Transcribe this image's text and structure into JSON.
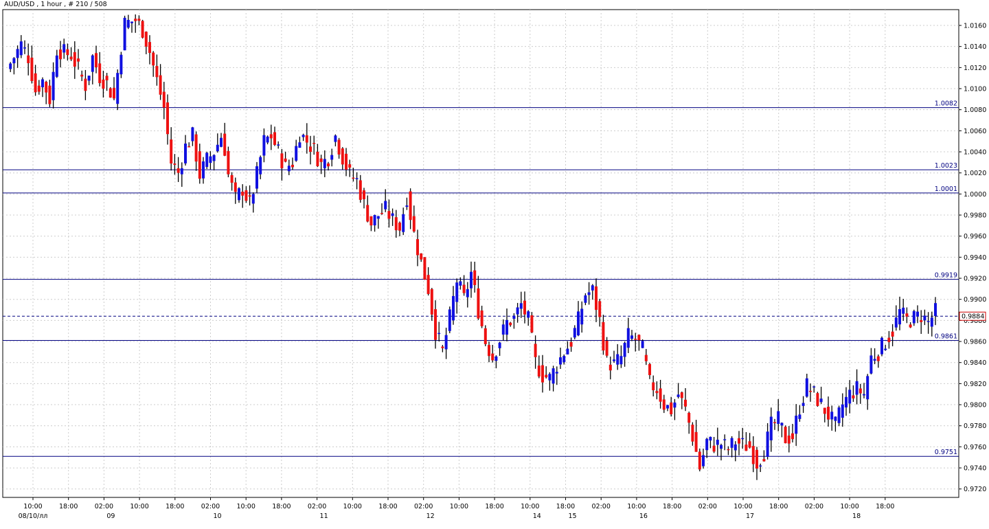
{
  "chart_data": {
    "type": "candlestick",
    "header": "AUD/USD , 1 hour , # 210 / 508",
    "ylim": [
      0.9712,
      1.0175
    ],
    "y_ticks": [
      "1.0160",
      "1.0140",
      "1.0120",
      "1.0100",
      "1.0080",
      "1.0060",
      "1.0040",
      "1.0020",
      "1.0000",
      "0.9980",
      "0.9960",
      "0.9940",
      "0.9920",
      "0.9900",
      "0.9880",
      "0.9860",
      "0.9840",
      "0.9820",
      "0.9800",
      "0.9780",
      "0.9760",
      "0.9740",
      "0.9720"
    ],
    "x_time_labels": [
      "10:00",
      "18:00",
      "02:00",
      "10:00",
      "18:00",
      "02:00",
      "10:00",
      "18:00",
      "02:00",
      "10:00",
      "18:00",
      "02:00",
      "10:00",
      "18:00",
      "10:00",
      "18:00",
      "02:00",
      "10:00",
      "18:00",
      "02:00",
      "10:00",
      "18:00",
      "02:00",
      "10:00",
      "18:00"
    ],
    "x_date_labels": [
      "08/10/лл",
      "09",
      "10",
      "11",
      "12",
      "14",
      "15",
      "16",
      "17",
      "18"
    ],
    "levels": [
      {
        "value": 1.0082,
        "label": "1.0082"
      },
      {
        "value": 1.0023,
        "label": "1.0023"
      },
      {
        "value": 1.0001,
        "label": "1.0001"
      },
      {
        "value": 0.9919,
        "label": "0.9919"
      },
      {
        "value": 0.9861,
        "label": "0.9861"
      },
      {
        "value": 0.9751,
        "label": "0.9751"
      }
    ],
    "current_price": {
      "value": 0.9884,
      "label": "0.9884"
    },
    "colors": {
      "up": "#1010e0",
      "down": "#ee1111",
      "wick": "#000000",
      "level": "#000080",
      "grid": "#cccccc",
      "current": "#cc0000"
    },
    "anchors": [
      [
        0,
        1.0118
      ],
      [
        4,
        1.0142
      ],
      [
        6,
        1.013
      ],
      [
        8,
        1.0098
      ],
      [
        10,
        1.0108
      ],
      [
        12,
        1.009
      ],
      [
        14,
        1.0138
      ],
      [
        16,
        1.0134
      ],
      [
        18,
        1.0132
      ],
      [
        20,
        1.0118
      ],
      [
        22,
        1.0103
      ],
      [
        24,
        1.013
      ],
      [
        26,
        1.0112
      ],
      [
        28,
        1.0105
      ],
      [
        30,
        1.009
      ],
      [
        32,
        1.014
      ],
      [
        33,
        1.0162
      ],
      [
        36,
        1.0165
      ],
      [
        38,
        1.0156
      ],
      [
        40,
        1.0135
      ],
      [
        42,
        1.0108
      ],
      [
        44,
        1.0082
      ],
      [
        46,
        1.003
      ],
      [
        48,
        1.002
      ],
      [
        50,
        1.0045
      ],
      [
        52,
        1.0055
      ],
      [
        54,
        1.0018
      ],
      [
        56,
        1.0032
      ],
      [
        58,
        1.004
      ],
      [
        60,
        1.0055
      ],
      [
        61,
        1.0043
      ],
      [
        62,
        1.0018
      ],
      [
        64,
        0.9995
      ],
      [
        66,
        1.0005
      ],
      [
        68,
        0.999
      ],
      [
        70,
        1.0018
      ],
      [
        72,
        1.005
      ],
      [
        74,
        1.0055
      ],
      [
        76,
        1.004
      ],
      [
        78,
        1.0025
      ],
      [
        80,
        1.003
      ],
      [
        82,
        1.0058
      ],
      [
        84,
        1.005
      ],
      [
        86,
        1.0042
      ],
      [
        88,
        1.0028
      ],
      [
        90,
        1.0035
      ],
      [
        92,
        1.0055
      ],
      [
        94,
        1.0035
      ],
      [
        96,
        1.0018
      ],
      [
        98,
        1.0013
      ],
      [
        100,
        0.999
      ],
      [
        102,
        0.9972
      ],
      [
        104,
        0.998
      ],
      [
        106,
        0.9985
      ],
      [
        108,
        0.9975
      ],
      [
        110,
        0.9968
      ],
      [
        112,
        0.9998
      ],
      [
        114,
        0.9962
      ],
      [
        116,
        0.9935
      ],
      [
        118,
        0.991
      ],
      [
        120,
        0.987
      ],
      [
        122,
        0.985
      ],
      [
        124,
        0.9882
      ],
      [
        126,
        0.9918
      ],
      [
        128,
        0.99
      ],
      [
        130,
        0.9925
      ],
      [
        132,
        0.989
      ],
      [
        134,
        0.986
      ],
      [
        136,
        0.9845
      ],
      [
        138,
        0.9862
      ],
      [
        140,
        0.9878
      ],
      [
        142,
        0.9882
      ],
      [
        144,
        0.9895
      ],
      [
        146,
        0.988
      ],
      [
        148,
        0.984
      ],
      [
        150,
        0.9828
      ],
      [
        152,
        0.9825
      ],
      [
        154,
        0.9838
      ],
      [
        156,
        0.985
      ],
      [
        158,
        0.986
      ],
      [
        160,
        0.988
      ],
      [
        162,
        0.9905
      ],
      [
        164,
        0.9908
      ],
      [
        166,
        0.988
      ],
      [
        168,
        0.984
      ],
      [
        170,
        0.9838
      ],
      [
        172,
        0.9845
      ],
      [
        174,
        0.9865
      ],
      [
        176,
        0.9862
      ],
      [
        178,
        0.9852
      ],
      [
        180,
        0.982
      ],
      [
        182,
        0.9815
      ],
      [
        184,
        0.98
      ],
      [
        186,
        0.9795
      ],
      [
        188,
        0.981
      ],
      [
        190,
        0.9795
      ],
      [
        192,
        0.977
      ],
      [
        194,
        0.974
      ],
      [
        196,
        0.9765
      ],
      [
        198,
        0.9762
      ],
      [
        200,
        0.9763
      ],
      [
        202,
        0.9758
      ],
      [
        204,
        0.9765
      ],
      [
        206,
        0.9762
      ],
      [
        208,
        0.976
      ],
      [
        210,
        0.9745
      ],
      [
        212,
        0.9755
      ],
      [
        214,
        0.978
      ],
      [
        216,
        0.9785
      ],
      [
        218,
        0.9768
      ],
      [
        220,
        0.977
      ],
      [
        222,
        0.9798
      ],
      [
        224,
        0.9818
      ],
      [
        226,
        0.981
      ],
      [
        228,
        0.98
      ],
      [
        230,
        0.979
      ],
      [
        232,
        0.978
      ],
      [
        234,
        0.98
      ],
      [
        236,
        0.981
      ],
      [
        238,
        0.9815
      ],
      [
        240,
        0.981
      ],
      [
        242,
        0.9845
      ],
      [
        244,
        0.985
      ],
      [
        246,
        0.986
      ],
      [
        248,
        0.987
      ],
      [
        250,
        0.9888
      ],
      [
        252,
        0.988
      ],
      [
        254,
        0.9882
      ],
      [
        256,
        0.9885
      ],
      [
        258,
        0.9878
      ],
      [
        260,
        0.9888
      ],
      [
        262,
        0.9884
      ]
    ]
  }
}
